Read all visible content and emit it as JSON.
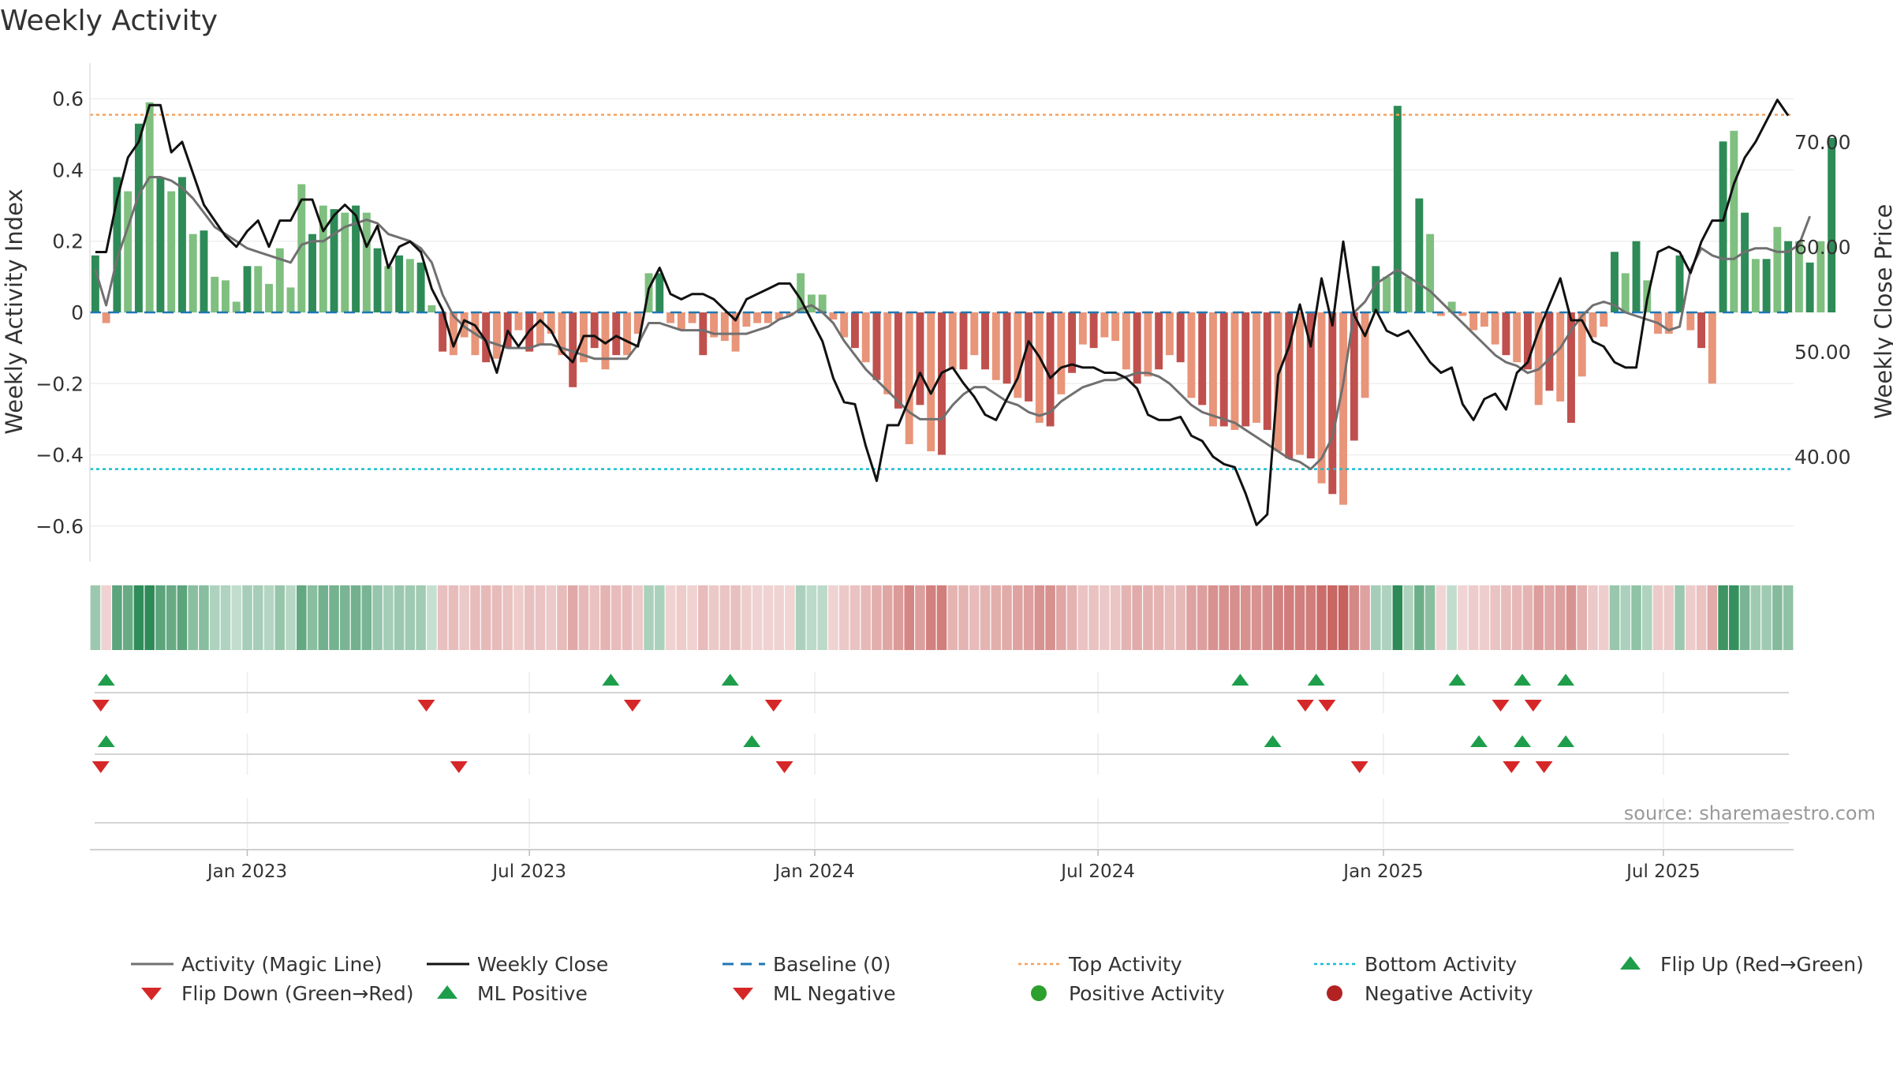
{
  "chart_data": {
    "type": "bar",
    "title": "Weekly Activity",
    "ylabel": "Weekly Activity Index",
    "y2label": "Weekly Close Price",
    "source": "source: sharemaestro.com",
    "ylim": [
      -0.7,
      0.7
    ],
    "y2lim": [
      30,
      77.5
    ],
    "yticks": [
      -0.6,
      -0.4,
      -0.2,
      0,
      0.2,
      0.4,
      0.6
    ],
    "yticklabels": [
      "−0.6",
      "−0.4",
      "−0.2",
      "0",
      "0.2",
      "0.4",
      "0.6"
    ],
    "y2ticks": [
      40,
      50,
      60,
      70
    ],
    "y2ticklabels": [
      "40.00",
      "50.00",
      "60.00",
      "70.00"
    ],
    "xticklabels": [
      "Jan 2023",
      "Jul 2023",
      "Jan 2024",
      "Jul 2024",
      "Jan 2025",
      "Jul 2025"
    ],
    "xtick_weeks": [
      14,
      40,
      66.3,
      92.4,
      118.7,
      144.5
    ],
    "n_weeks": 157,
    "top_activity": 0.555,
    "bottom_activity": -0.44,
    "baseline": 0,
    "activity": [
      0.16,
      -0.03,
      0.38,
      0.34,
      0.53,
      0.59,
      0.38,
      0.34,
      0.38,
      0.22,
      0.23,
      0.1,
      0.09,
      0.03,
      0.13,
      0.13,
      0.08,
      0.18,
      0.07,
      0.36,
      0.22,
      0.3,
      0.29,
      0.28,
      0.3,
      0.28,
      0.18,
      0.13,
      0.16,
      0.15,
      0.14,
      0.02,
      -0.11,
      -0.12,
      -0.07,
      -0.12,
      -0.14,
      -0.13,
      -0.1,
      -0.05,
      -0.11,
      -0.09,
      -0.06,
      -0.12,
      -0.21,
      -0.14,
      -0.1,
      -0.16,
      -0.12,
      -0.12,
      -0.06,
      0.11,
      0.11,
      -0.03,
      -0.05,
      -0.03,
      -0.12,
      -0.07,
      -0.08,
      -0.11,
      -0.04,
      -0.03,
      -0.03,
      -0.02,
      -0.01,
      0.11,
      0.05,
      0.05,
      -0.02,
      -0.07,
      -0.1,
      -0.14,
      -0.19,
      -0.23,
      -0.27,
      -0.37,
      -0.26,
      -0.39,
      -0.4,
      -0.16,
      -0.16,
      -0.12,
      -0.16,
      -0.19,
      -0.2,
      -0.24,
      -0.25,
      -0.31,
      -0.32,
      -0.23,
      -0.17,
      -0.09,
      -0.1,
      -0.07,
      -0.08,
      -0.16,
      -0.2,
      -0.18,
      -0.16,
      -0.12,
      -0.14,
      -0.24,
      -0.26,
      -0.32,
      -0.32,
      -0.33,
      -0.32,
      -0.31,
      -0.33,
      -0.39,
      -0.41,
      -0.4,
      -0.41,
      -0.48,
      -0.51,
      -0.54,
      -0.36,
      -0.24,
      0.13,
      0.1,
      0.58,
      0.1,
      0.32,
      0.22,
      -0.01,
      0.03,
      -0.01,
      -0.05,
      -0.04,
      -0.09,
      -0.12,
      -0.14,
      -0.16,
      -0.26,
      -0.22,
      -0.25,
      -0.31,
      -0.18,
      -0.07,
      -0.04,
      0.17,
      0.11,
      0.2,
      0.09,
      -0.06,
      -0.06,
      0.16,
      -0.05,
      -0.1,
      -0.2,
      0.48,
      0.51,
      0.28,
      0.15,
      0.15,
      0.24,
      0.2,
      0.2,
      0.14,
      0.2,
      0.49
    ],
    "magic_line": [
      0.12,
      0.02,
      0.15,
      0.24,
      0.33,
      0.38,
      0.38,
      0.37,
      0.35,
      0.32,
      0.28,
      0.24,
      0.22,
      0.2,
      0.18,
      0.17,
      0.16,
      0.15,
      0.14,
      0.19,
      0.2,
      0.2,
      0.22,
      0.24,
      0.25,
      0.26,
      0.25,
      0.22,
      0.21,
      0.2,
      0.18,
      0.14,
      0.05,
      -0.01,
      -0.04,
      -0.06,
      -0.08,
      -0.09,
      -0.1,
      -0.1,
      -0.1,
      -0.09,
      -0.09,
      -0.1,
      -0.11,
      -0.12,
      -0.13,
      -0.13,
      -0.13,
      -0.13,
      -0.09,
      -0.03,
      -0.03,
      -0.04,
      -0.05,
      -0.05,
      -0.05,
      -0.06,
      -0.06,
      -0.06,
      -0.06,
      -0.05,
      -0.04,
      -0.02,
      -0.01,
      0.01,
      0.02,
      0.0,
      -0.03,
      -0.08,
      -0.12,
      -0.16,
      -0.19,
      -0.22,
      -0.25,
      -0.28,
      -0.3,
      -0.3,
      -0.3,
      -0.26,
      -0.23,
      -0.21,
      -0.21,
      -0.23,
      -0.25,
      -0.26,
      -0.28,
      -0.29,
      -0.28,
      -0.25,
      -0.23,
      -0.21,
      -0.2,
      -0.19,
      -0.19,
      -0.18,
      -0.17,
      -0.17,
      -0.18,
      -0.2,
      -0.23,
      -0.26,
      -0.28,
      -0.29,
      -0.3,
      -0.31,
      -0.33,
      -0.35,
      -0.37,
      -0.39,
      -0.41,
      -0.42,
      -0.44,
      -0.41,
      -0.35,
      -0.2,
      0.0,
      0.03,
      0.08,
      0.1,
      0.12,
      0.1,
      0.08,
      0.06,
      0.03,
      0.0,
      -0.03,
      -0.06,
      -0.09,
      -0.12,
      -0.14,
      -0.15,
      -0.17,
      -0.16,
      -0.13,
      -0.1,
      -0.05,
      -0.01,
      0.02,
      0.03,
      0.02,
      0.0,
      -0.01,
      -0.02,
      -0.03,
      -0.05,
      -0.04,
      0.12,
      0.18,
      0.16,
      0.15,
      0.15,
      0.17,
      0.18,
      0.18,
      0.17,
      0.17,
      0.19,
      0.27
    ],
    "weekly_close": [
      59.5,
      59.5,
      64.5,
      68.5,
      70,
      73.5,
      73.5,
      69,
      70,
      67,
      64,
      62.5,
      61,
      60,
      61.5,
      62.5,
      60,
      62.5,
      62.5,
      64.5,
      64.5,
      61.5,
      63,
      64,
      63,
      60,
      62,
      58,
      60,
      60.5,
      59.5,
      56,
      54,
      50.5,
      53,
      52.5,
      51,
      48,
      52,
      50.5,
      52,
      53,
      52,
      50,
      49,
      51.5,
      51.5,
      50.8,
      51.5,
      51,
      50.5,
      56,
      58,
      55.5,
      55,
      55.5,
      55.5,
      55,
      54,
      53,
      55,
      55.5,
      56,
      56.5,
      56.5,
      55,
      53,
      51,
      47.5,
      45.2,
      45,
      41,
      37.7,
      43,
      43,
      45.5,
      48,
      46,
      48,
      48.5,
      47,
      45.7,
      44,
      43.5,
      45.5,
      47.5,
      51,
      49.5,
      47.5,
      48.5,
      48.8,
      48.5,
      48.5,
      48,
      48,
      47.5,
      46.5,
      44,
      43.5,
      43.5,
      43.8,
      42,
      41.5,
      40,
      39.3,
      39,
      36.5,
      33.5,
      34.5,
      47.8,
      50.5,
      54.5,
      50.5,
      57,
      52.5,
      60.5,
      53.5,
      51.5,
      54,
      52,
      51.5,
      52,
      50.5,
      49,
      48,
      48.5,
      45,
      43.5,
      45.5,
      46,
      44.5,
      48,
      49,
      52,
      54.5,
      57,
      53,
      53,
      51,
      50.5,
      49,
      48.5,
      48.5,
      55,
      59.5,
      60,
      59.5,
      57.5,
      60.5,
      62.5,
      62.5,
      66,
      68.5,
      70,
      72,
      74,
      72.5
    ],
    "heat_strip_segments": 157,
    "flip_up_weeks": [
      1,
      47.5,
      58.5,
      105.5,
      112.5,
      125.5,
      131.5,
      135.5
    ],
    "flip_down_weeks": [
      0.5,
      30.5,
      49.5,
      62.5,
      111.5,
      113.5,
      129.5,
      132.5
    ],
    "ml_positive_weeks": [
      1,
      60.5,
      108.5,
      127.5,
      131.5,
      135.5
    ],
    "ml_negative_weeks": [
      0.5,
      33.5,
      63.5,
      116.5,
      130.5,
      133.5
    ],
    "colors": {
      "pos_strong": "#2e8b57",
      "pos_light": "#7fbf7f",
      "neg_strong": "#c0504d",
      "neg_light": "#e8957a",
      "magic_line": "#707070",
      "close_line": "#111111",
      "baseline": "#1f77b4",
      "top_line": "#f4a261",
      "bottom_line": "#17becf",
      "marker_up": "#1e9e4a",
      "marker_down": "#d62728",
      "pos_dot": "#2ca02c",
      "neg_dot": "#b22222"
    }
  },
  "legend": {
    "magic_line": "Activity (Magic Line)",
    "weekly_close": "Weekly Close",
    "baseline": "Baseline (0)",
    "top_activity": "Top Activity",
    "bottom_activity": "Bottom Activity",
    "flip_up": "Flip Up (Red→Green)",
    "flip_down": "Flip Down (Green→Red)",
    "ml_positive": "ML Positive",
    "ml_negative": "ML Negative",
    "positive_activity": "Positive Activity",
    "negative_activity": "Negative Activity"
  }
}
